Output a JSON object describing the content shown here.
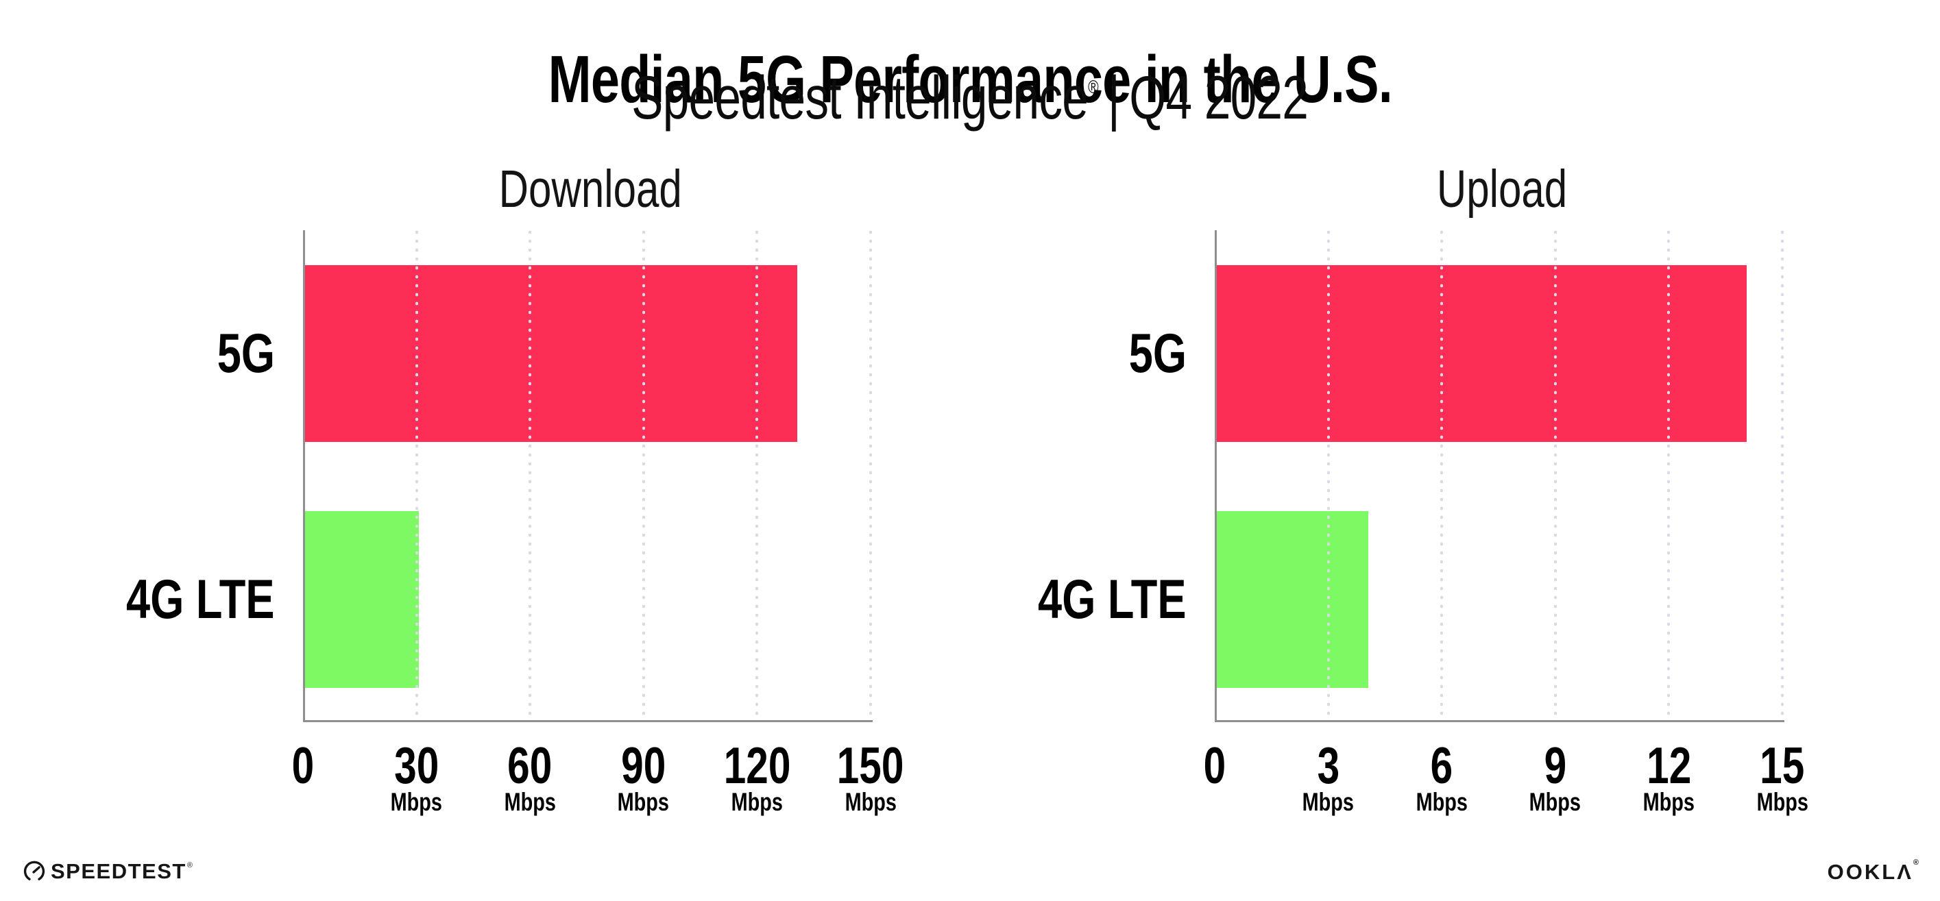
{
  "title": "Median 5G Performance in the U.S.",
  "subtitle": {
    "brand": "Speedtest Intelligence",
    "mark": "®",
    "separator": "|",
    "period": "Q4 2022"
  },
  "colors": {
    "bar_5g": "#fd2e55",
    "bar_4g_lte": "#7dfa63",
    "axis": "#8f8f8f",
    "grid_dot": "#dadae6",
    "text": "#000000",
    "background": "#ffffff"
  },
  "chart_data": [
    {
      "type": "bar",
      "orientation": "horizontal",
      "title": "Download",
      "categories": [
        "5G",
        "4G LTE"
      ],
      "values": [
        130,
        30
      ],
      "unit": "Mbps",
      "xlim": [
        0,
        150
      ],
      "xticks": [
        0,
        30,
        60,
        90,
        120,
        150
      ],
      "tick_unit_label": "Mbps",
      "unit_label_under_zero": false,
      "bar_colors": [
        "#fd2e55",
        "#7dfa63"
      ],
      "grid": "dotted-vertical-at-ticks",
      "legend": "none"
    },
    {
      "type": "bar",
      "orientation": "horizontal",
      "title": "Upload",
      "categories": [
        "5G",
        "4G LTE"
      ],
      "values": [
        14,
        4
      ],
      "unit": "Mbps",
      "xlim": [
        0,
        15
      ],
      "xticks": [
        0,
        3,
        6,
        9,
        12,
        15
      ],
      "tick_unit_label": "Mbps",
      "unit_label_under_zero": false,
      "bar_colors": [
        "#fd2e55",
        "#7dfa63"
      ],
      "grid": "dotted-vertical-at-ticks",
      "legend": "none"
    }
  ],
  "footer": {
    "speedtest_label": "SPEEDTEST",
    "speedtest_mark": "®",
    "ookla_label": "OOKLΛ",
    "ookla_mark": "®"
  }
}
